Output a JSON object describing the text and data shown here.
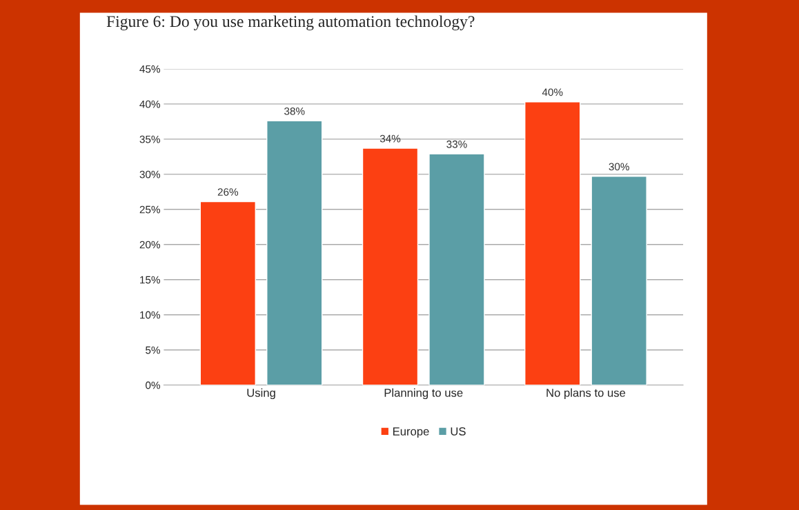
{
  "chart_data": {
    "type": "bar",
    "title": "Figure 6: Do you use marketing automation technology?",
    "categories": [
      "Using",
      "Planning to use",
      "No plans to use"
    ],
    "series": [
      {
        "name": "Europe",
        "color": "#fc4012",
        "values": [
          26.1,
          33.7,
          40.3
        ],
        "value_labels": [
          "26%",
          "34%",
          "40%"
        ]
      },
      {
        "name": "US",
        "color": "#5b9ea6",
        "values": [
          37.6,
          32.9,
          29.7
        ],
        "value_labels": [
          "38%",
          "33%",
          "30%"
        ]
      }
    ],
    "ylim": [
      0,
      45
    ],
    "yticks": [
      {
        "value": 0,
        "label": "0%"
      },
      {
        "value": 5,
        "label": "5%"
      },
      {
        "value": 10,
        "label": "10%"
      },
      {
        "value": 15,
        "label": "15%"
      },
      {
        "value": 20,
        "label": "20%"
      },
      {
        "value": 25,
        "label": "25%"
      },
      {
        "value": 30,
        "label": "30%"
      },
      {
        "value": 35,
        "label": "35%"
      },
      {
        "value": 40,
        "label": "40%"
      },
      {
        "value": 45,
        "label": "45%"
      }
    ],
    "grid": "y",
    "legend": "bottom"
  }
}
